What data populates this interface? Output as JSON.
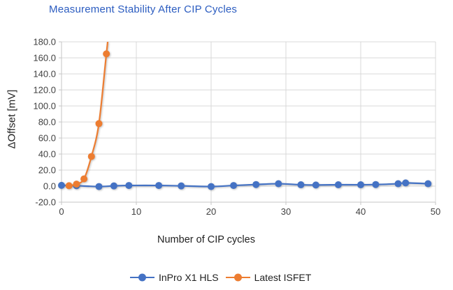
{
  "chart_title": "Measurement Stability After CIP Cycles",
  "chart_data": {
    "type": "line",
    "title": "Measurement Stability After CIP Cycles",
    "xlabel": "Number of CIP cycles",
    "ylabel": "ΔOffset [mV]",
    "xlim": [
      0,
      50
    ],
    "ylim": [
      -20,
      180
    ],
    "xticks": [
      0,
      10,
      20,
      30,
      40,
      50
    ],
    "yticks": [
      -20,
      0,
      20,
      40,
      60,
      80,
      100,
      120,
      140,
      160,
      180
    ],
    "ytick_labels": [
      "-20.0",
      "0.0",
      "20.0",
      "40.0",
      "60.0",
      "80.0",
      "100.0",
      "120.0",
      "140.0",
      "160.0",
      "180.0"
    ],
    "grid": true,
    "legend_position": "bottom",
    "marker": "circle",
    "smooth_lines": true,
    "series": [
      {
        "name": "InPro X1 HLS",
        "color": "#4472C4",
        "x": [
          0,
          2,
          5,
          7,
          9,
          13,
          16,
          20,
          23,
          26,
          29,
          32,
          34,
          37,
          40,
          42,
          45,
          46,
          49
        ],
        "y": [
          1.0,
          0.5,
          -0.5,
          0.3,
          0.8,
          0.8,
          0.3,
          -0.5,
          0.8,
          2.0,
          3.0,
          1.7,
          1.4,
          1.7,
          1.7,
          2.0,
          3.0,
          4.0,
          3.0
        ]
      },
      {
        "name": "Latest ISFET",
        "color": "#ED7D31",
        "x": [
          1,
          2,
          3,
          4,
          5,
          6
        ],
        "y": [
          0.5,
          2.5,
          9.0,
          37.0,
          78.0,
          165.0
        ],
        "line_continues_beyond_ymax": true
      }
    ]
  },
  "colors": {
    "title": "#2B5CC0",
    "grid": "#D9D9D9",
    "axis_line": "#C6C6C6",
    "tick_label": "#404040",
    "axis_title": "#1F1F1F",
    "legend_text": "#1F1F1F",
    "background": "#FFFFFF"
  }
}
